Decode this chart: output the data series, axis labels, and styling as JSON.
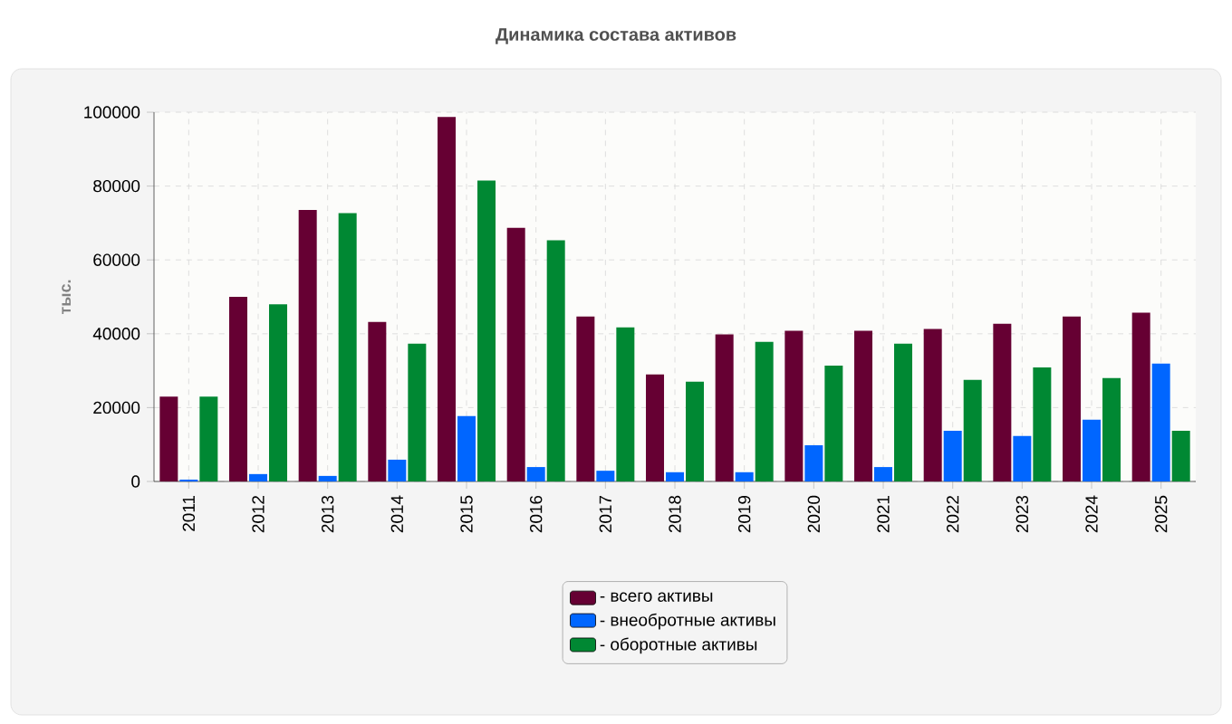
{
  "chart_data": {
    "type": "bar",
    "title": "Динамика состава активов",
    "ylabel": "тыс.",
    "categories": [
      "2011",
      "2012",
      "2013",
      "2014",
      "2015",
      "2016",
      "2017",
      "2018",
      "2019",
      "2020",
      "2021",
      "2022",
      "2023",
      "2024",
      "2025"
    ],
    "series": [
      {
        "name": "- всего активы",
        "color": "#660033",
        "values": [
          23000,
          50000,
          73500,
          43200,
          98700,
          68700,
          44700,
          29000,
          39800,
          40800,
          40800,
          41300,
          42700,
          44700,
          45700
        ]
      },
      {
        "name": "- внеобротные активы",
        "color": "#0066ff",
        "values": [
          500,
          2000,
          1500,
          5900,
          17700,
          3900,
          2900,
          2500,
          2500,
          9800,
          3900,
          13700,
          12300,
          16700,
          31900
        ]
      },
      {
        "name": "- оборотные активы",
        "color": "#008833",
        "values": [
          23000,
          48000,
          72700,
          37300,
          81500,
          65300,
          41700,
          27000,
          37800,
          31400,
          37300,
          27500,
          30900,
          28000,
          13700
        ]
      }
    ],
    "ylim": [
      0,
      100000
    ],
    "yticks": [
      0,
      20000,
      40000,
      60000,
      80000,
      100000
    ],
    "grid": true,
    "legend": "bottom"
  }
}
